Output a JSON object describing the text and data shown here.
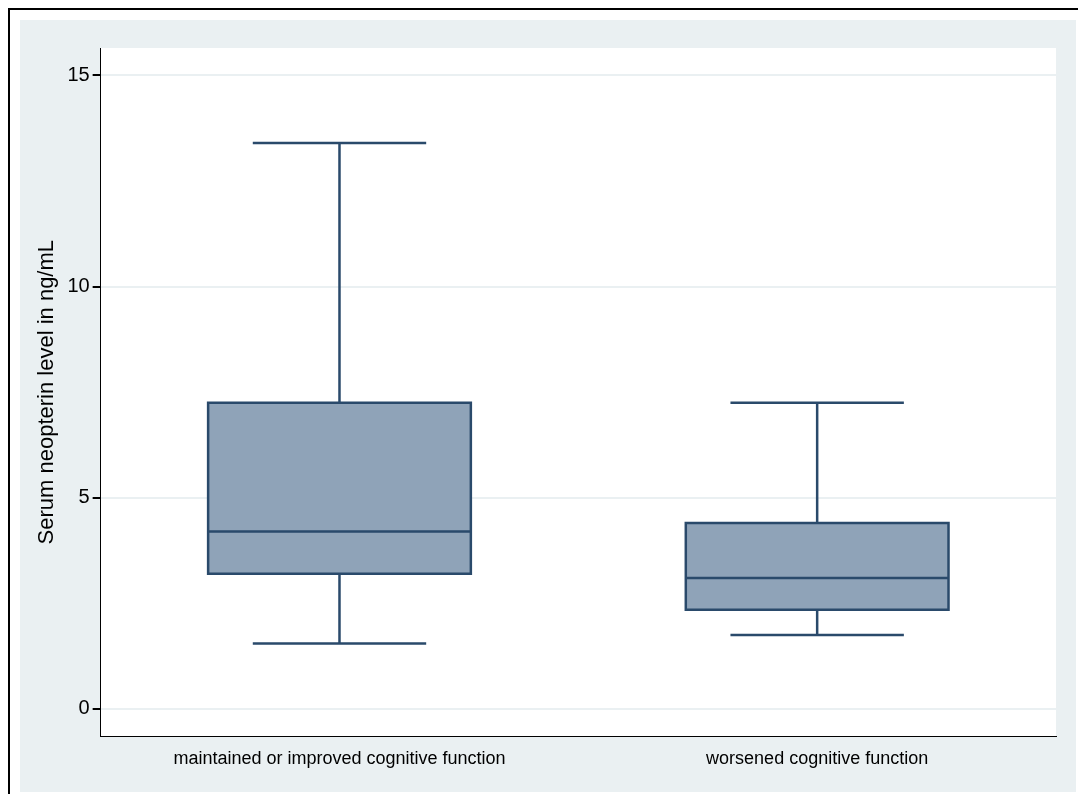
{
  "chart_data": {
    "type": "box",
    "ylabel": "Serum neopterin level in ng/mL",
    "categories": [
      "maintained or improved cognitive function",
      "worsened cognitive function"
    ],
    "boxes": [
      {
        "low": 1.55,
        "q1": 3.2,
        "median": 4.2,
        "q3": 7.25,
        "high": 13.4
      },
      {
        "low": 1.75,
        "q1": 2.35,
        "median": 3.1,
        "q3": 4.4,
        "high": 7.25
      }
    ],
    "color": "#8fa3b8",
    "ylim": [
      -0.65,
      15.65
    ],
    "yticks": [
      0,
      5,
      10,
      15
    ],
    "grid": "y",
    "legend": false
  }
}
